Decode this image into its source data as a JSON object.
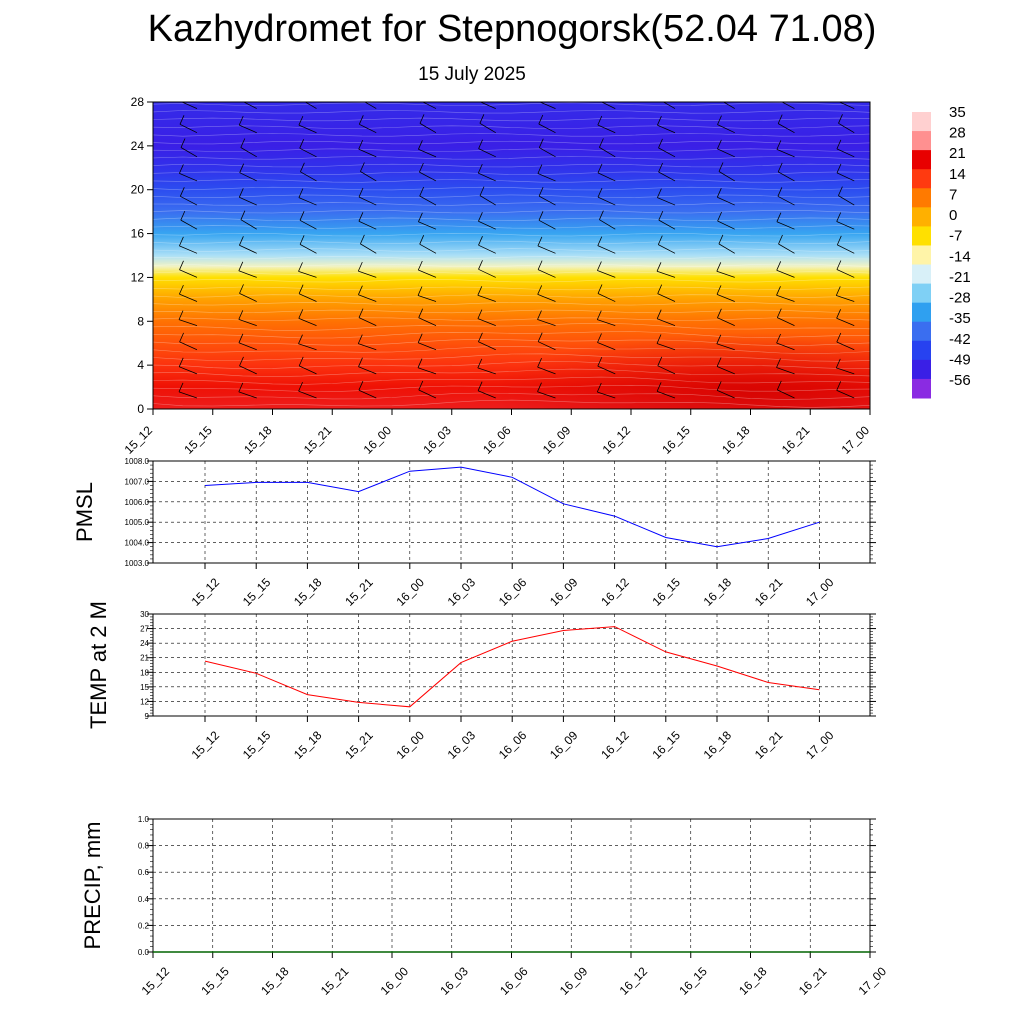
{
  "header": {
    "title": "Kazhydromet for Stepnogorsk(52.04 71.08)",
    "date": "15 July 2025"
  },
  "chart_data": [
    {
      "type": "heatmap",
      "x_labels": [
        "15_12",
        "15_15",
        "15_18",
        "15_21",
        "16_00",
        "16_03",
        "16_06",
        "16_09",
        "16_12",
        "16_15",
        "16_18",
        "16_21",
        "17_00"
      ],
      "y_ticks": [
        0,
        4,
        8,
        12,
        16,
        20,
        24,
        28
      ],
      "ylim": [
        0,
        28
      ],
      "colorbar_labels": [
        "35",
        "28",
        "21",
        "14",
        "7",
        "0",
        "-7",
        "-14",
        "-21",
        "-28",
        "-35",
        "-42",
        "-49",
        "-56"
      ],
      "level_temps": [
        {
          "level": 0,
          "temp": 28
        },
        {
          "level": 2,
          "temp": 25
        },
        {
          "level": 4,
          "temp": 21
        },
        {
          "level": 6,
          "temp": 17
        },
        {
          "level": 8,
          "temp": 13
        },
        {
          "level": 10,
          "temp": 7
        },
        {
          "level": 12,
          "temp": -3
        },
        {
          "level": 13,
          "temp": -12
        },
        {
          "level": 14,
          "temp": -20
        },
        {
          "level": 16,
          "temp": -33
        },
        {
          "level": 18,
          "temp": -42
        },
        {
          "level": 20,
          "temp": -48
        },
        {
          "level": 22,
          "temp": -53
        },
        {
          "level": 24,
          "temp": -56
        },
        {
          "level": 26,
          "temp": -55
        },
        {
          "level": 28,
          "temp": -54
        }
      ],
      "colors": {
        "scale": [
          "#8a2be2",
          "#3a1fe6",
          "#2742f0",
          "#3a6ef0",
          "#2fa0f0",
          "#7fd0f5",
          "#d8f0f8",
          "#fff4a8",
          "#ffe000",
          "#ffb000",
          "#ff7a00",
          "#ff3a10",
          "#e80000",
          "#ff9090",
          "#ffd0d0"
        ]
      }
    },
    {
      "type": "line",
      "ylabel": "PMSL",
      "x": [
        "15_12",
        "15_15",
        "15_18",
        "15_21",
        "16_00",
        "16_03",
        "16_06",
        "16_09",
        "16_12",
        "16_15",
        "16_18",
        "16_21",
        "17_00"
      ],
      "series": [
        {
          "values": [
            1006.8,
            1006.95,
            1006.95,
            1006.5,
            1007.5,
            1007.7,
            1007.2,
            1005.9,
            1005.3,
            1004.25,
            1003.8,
            1004.2,
            1005.0
          ]
        }
      ],
      "y_ticks": [
        "1003.0",
        "1004.0",
        "1005.0",
        "1006.0",
        "1007.0",
        "1008.0"
      ],
      "ylim": [
        1003,
        1008
      ],
      "grid": true,
      "color": "#0000ff"
    },
    {
      "type": "line",
      "ylabel": "TEMP at 2 M",
      "x": [
        "15_12",
        "15_15",
        "15_18",
        "15_21",
        "16_00",
        "16_03",
        "16_06",
        "16_09",
        "16_12",
        "16_15",
        "16_18",
        "16_21",
        "17_00"
      ],
      "series": [
        {
          "values": [
            20.3,
            17.8,
            13.4,
            11.8,
            10.9,
            20.0,
            24.4,
            26.6,
            27.4,
            22.2,
            19.3,
            15.9,
            14.4
          ]
        }
      ],
      "y_ticks": [
        "9",
        "12",
        "15",
        "18",
        "21",
        "24",
        "27",
        "30"
      ],
      "ylim": [
        9,
        30
      ],
      "grid": true,
      "color": "#ff0000"
    },
    {
      "type": "line",
      "ylabel": "PRECIP, mm",
      "x": [
        "15_12",
        "15_15",
        "15_18",
        "15_21",
        "16_00",
        "16_03",
        "16_06",
        "16_09",
        "16_12",
        "16_15",
        "16_18",
        "16_21",
        "17_00"
      ],
      "series": [
        {
          "values": [
            0,
            0,
            0,
            0,
            0,
            0,
            0,
            0,
            0,
            0,
            0,
            0,
            0
          ]
        }
      ],
      "y_ticks": [
        "0.0",
        "0.2",
        "0.4",
        "0.6",
        "0.8",
        "1.0"
      ],
      "ylim": [
        0,
        1
      ],
      "grid": true,
      "color": "#006400"
    }
  ]
}
